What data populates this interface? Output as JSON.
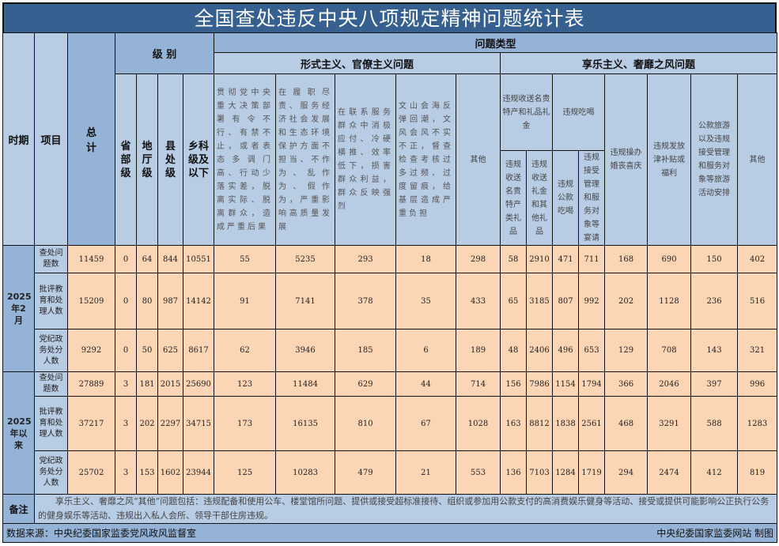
{
  "title": "全国查处违反中央八项规定精神问题统计表",
  "headers": {
    "period": "时期",
    "item": "项目",
    "total": "总计",
    "level": "级 别",
    "problem_type": "问题类型",
    "levels": [
      "省部级",
      "地厅级",
      "县处级",
      "乡科级及以下"
    ],
    "formalism": "形式主义、官僚主义问题",
    "hedonism": "享乐主义、奢靡之风问题",
    "formalism_cols": [
      "贯彻党中央重大决策部署有令不行、有禁不止，或者表态多调门高、行动少落实差，脱离实际、脱离群众，造成严重后果",
      "在履职尽责、服务经济社会发展和生态环境保护方面不担当、不作为、乱作为、假作为，严重影响高质量发展",
      "在联系服务群众中消极应付、冷硬横推、效率低下，损害群众利益，群众反映强烈",
      "文山会海反弹回潮，文风会风不实不正，督查检查考核过多过频、过度留痕，给基层造成严重负担",
      "其他"
    ],
    "gift_group": "违规收送名贵特产和礼品礼金",
    "gift_cols": [
      "违规收送名贵特产类礼品",
      "违规收送礼金和其他礼品"
    ],
    "dining_group": "违规吃喝",
    "dining_cols": [
      "违规公款吃喝",
      "违规接受管理和服务对象等宴请"
    ],
    "other_cols": [
      "违规操办婚丧喜庆",
      "违规发放津补贴或福利",
      "公款旅游以及违规接受管理和服务对象等旅游活动安排",
      "其他"
    ]
  },
  "periods": [
    {
      "label": "2025年2月",
      "rows": [
        {
          "item": "查处问题数",
          "values": [
            "11459",
            "0",
            "64",
            "844",
            "10551",
            "55",
            "5235",
            "293",
            "18",
            "298",
            "58",
            "2910",
            "471",
            "711",
            "168",
            "690",
            "150",
            "402"
          ]
        },
        {
          "item": "批评教育和处理人数",
          "values": [
            "15209",
            "0",
            "80",
            "987",
            "14142",
            "91",
            "7141",
            "378",
            "35",
            "433",
            "65",
            "3185",
            "807",
            "992",
            "202",
            "1128",
            "236",
            "516"
          ]
        },
        {
          "item": "党纪政务处分人数",
          "values": [
            "9292",
            "0",
            "50",
            "625",
            "8617",
            "62",
            "3946",
            "185",
            "6",
            "189",
            "48",
            "2406",
            "496",
            "653",
            "129",
            "708",
            "143",
            "321"
          ]
        }
      ]
    },
    {
      "label": "2025年以来",
      "rows": [
        {
          "item": "查处问题数",
          "values": [
            "27889",
            "3",
            "181",
            "2015",
            "25690",
            "123",
            "11484",
            "629",
            "44",
            "714",
            "156",
            "7986",
            "1154",
            "1794",
            "366",
            "2046",
            "397",
            "996"
          ]
        },
        {
          "item": "批评教育和处理人数",
          "values": [
            "37217",
            "3",
            "202",
            "2297",
            "34715",
            "173",
            "16135",
            "810",
            "67",
            "1028",
            "163",
            "8812",
            "1838",
            "2561",
            "468",
            "3291",
            "588",
            "1283"
          ]
        },
        {
          "item": "党纪政务处分人数",
          "values": [
            "25702",
            "3",
            "153",
            "1602",
            "23944",
            "125",
            "10283",
            "479",
            "21",
            "553",
            "136",
            "7103",
            "1284",
            "1719",
            "294",
            "2474",
            "412",
            "819"
          ]
        }
      ]
    }
  ],
  "note": {
    "label": "备注",
    "text": "享乐主义、奢靡之风“其他”问题包括：违规配备和使用公车、楼堂馆所问题、提供或接受超标准接待、组织或参加用公款支付的高消费娱乐健身等活动、接受或提供可能影响公正执行公务的健身娱乐等活动、违规出入私人会所、领导干部住房违规。"
  },
  "footer": {
    "source": "数据来源：中央纪委国家监委党风政风监督室",
    "credit": "中央纪委国家监委网站 制图"
  },
  "colors": {
    "title_bg": "#35608f",
    "header_bg": "#b8cce4",
    "header_dark": "#95b3d7",
    "data_bg": "#fcd5b4"
  }
}
